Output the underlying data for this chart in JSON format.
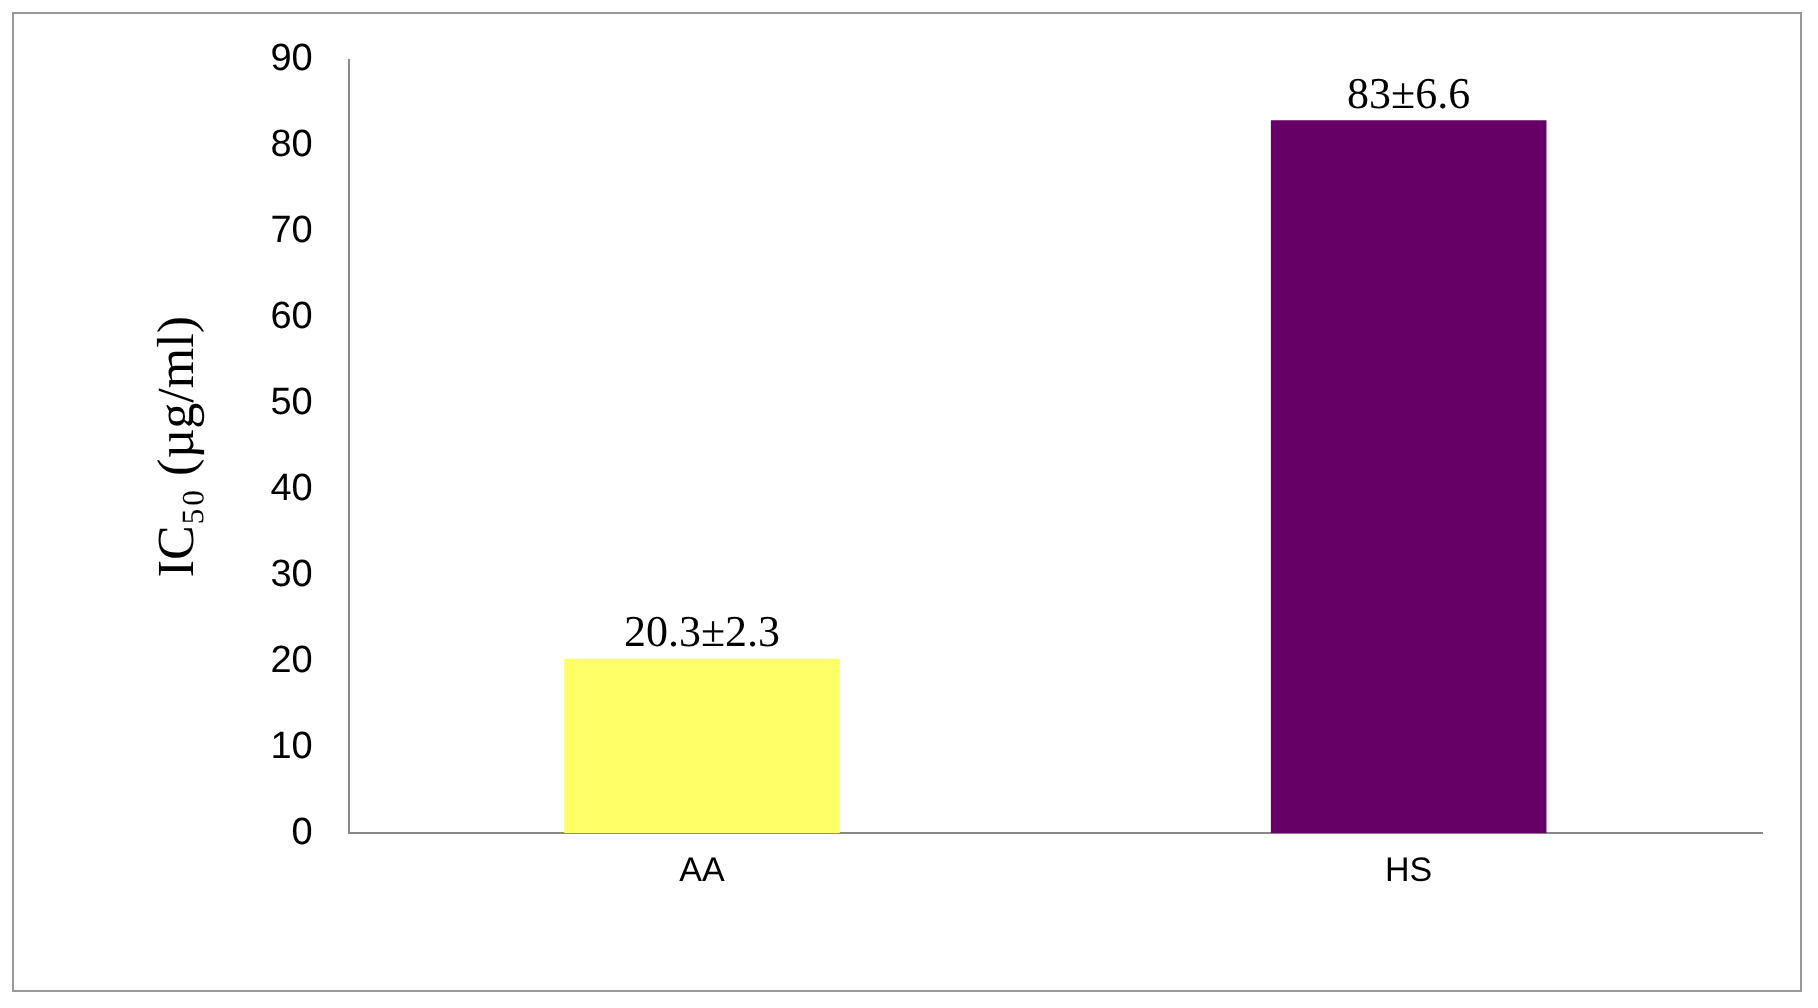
{
  "chart_data": {
    "type": "bar",
    "ylabel": "IC₅₀ (µg/ml)",
    "categories": [
      "AA",
      "HS"
    ],
    "values": [
      20.3,
      83
    ],
    "colors": [
      "#ffff66",
      "#660066"
    ],
    "value_labels": [
      "20.3±2.3",
      "83±6.6"
    ],
    "ylim": [
      0,
      90
    ],
    "yticks": [
      0,
      10,
      20,
      30,
      40,
      50,
      60,
      70,
      80,
      90
    ],
    "grid": false,
    "legend": false
  }
}
